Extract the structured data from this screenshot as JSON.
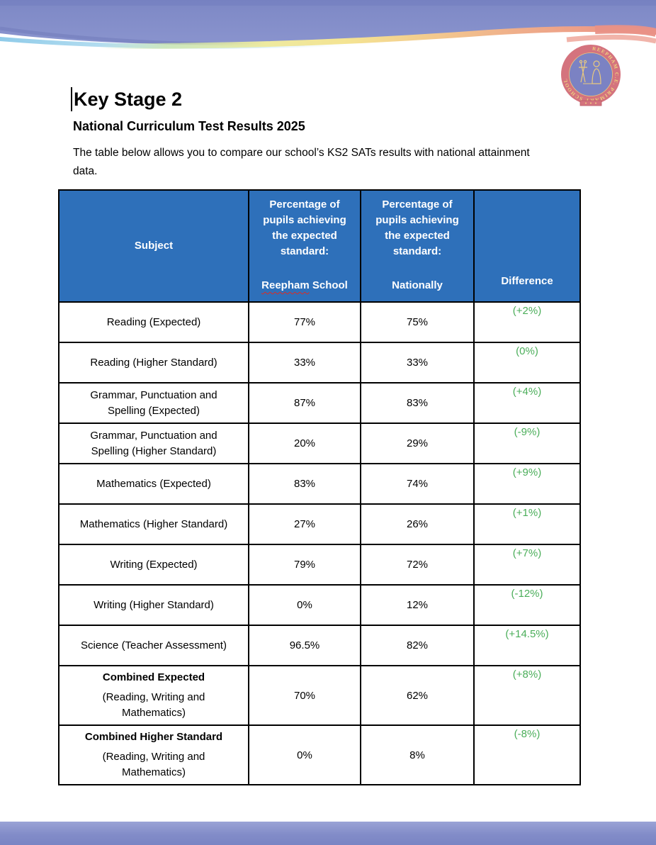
{
  "heading": {
    "title": "Key Stage 2",
    "subtitle": "National Curriculum Test Results 2025"
  },
  "intro": {
    "text": "The table below allows you to compare our school’s KS2 SATs results with national attainment data."
  },
  "logo": {
    "ring_text": "REEPHAM C.E. PRIMARY SCHOOL"
  },
  "table": {
    "col_headers": {
      "subject": "Subject",
      "school_top": "Percentage of pupils achieving the expected standard:",
      "school_name_word": "Reepham",
      "school_name_rest": "School",
      "national_top": "Percentage of pupils achieving the expected standard:",
      "national_name": "Nationally",
      "difference": "Difference"
    },
    "rows": [
      {
        "subject": "Reading (Expected)",
        "school": "77%",
        "national": "75%",
        "difference": "(+2%)"
      },
      {
        "subject": "Reading (Higher Standard)",
        "school": "33%",
        "national": "33%",
        "difference": "(0%)"
      },
      {
        "subject": "Grammar, Punctuation and Spelling (Expected)",
        "school": "87%",
        "national": "83%",
        "difference": "(+4%)"
      },
      {
        "subject": "Grammar, Punctuation and Spelling (Higher Standard)",
        "school": "20%",
        "national": "29%",
        "difference": "(-9%)"
      },
      {
        "subject": "Mathematics (Expected)",
        "school": "83%",
        "national": "74%",
        "difference": "(+9%)"
      },
      {
        "subject": "Mathematics (Higher Standard)",
        "school": "27%",
        "national": "26%",
        "difference": "(+1%)"
      },
      {
        "subject": "Writing (Expected)",
        "school": "79%",
        "national": "72%",
        "difference": "(+7%)"
      },
      {
        "subject": "Writing (Higher Standard)",
        "school": "0%",
        "national": "12%",
        "difference": "(-12%)"
      },
      {
        "subject": "Science (Teacher Assessment)",
        "school": "96.5%",
        "national": "82%",
        "difference": "(+14.5%)"
      },
      {
        "tall": true,
        "subject_title": "Combined Expected",
        "subject_note": "(Reading, Writing and Mathematics)",
        "school": "70%",
        "national": "62%",
        "difference": "(+8%)"
      },
      {
        "tall": true,
        "subject_title": "Combined Higher Standard",
        "subject_note": "(Reading, Writing and Mathematics)",
        "school": "0%",
        "national": "8%",
        "difference": "(-8%)"
      }
    ]
  },
  "colors": {
    "header_bg": "#2E70BA",
    "difference_green": "#4BAE5A",
    "banner_blue": "#8590CA",
    "spellcheck_red": "#E02B20",
    "logo_ring": "#D4737E",
    "logo_inner": "#7B82C3"
  }
}
